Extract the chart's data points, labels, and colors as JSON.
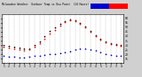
{
  "title": "Milwaukee Weather  Outdoor Temp vs Dew Point  (24 Hours)",
  "title_fontsize": 2.2,
  "background_color": "#d0d0d0",
  "plot_bg_color": "#ffffff",
  "legend_temp_color": "#ff0000",
  "legend_dew_color": "#0000cc",
  "hours": [
    1,
    2,
    3,
    4,
    5,
    6,
    7,
    8,
    9,
    10,
    11,
    12,
    13,
    14,
    15,
    16,
    17,
    18,
    19,
    20,
    21,
    22,
    23,
    24
  ],
  "temp_y": [
    28,
    27,
    26,
    25,
    24,
    25,
    28,
    32,
    37,
    43,
    47,
    52,
    56,
    58,
    57,
    54,
    50,
    45,
    40,
    36,
    33,
    31,
    30,
    29
  ],
  "dew_y": [
    18,
    17,
    17,
    16,
    16,
    17,
    18,
    18,
    19,
    20,
    20,
    21,
    22,
    23,
    25,
    26,
    26,
    25,
    24,
    22,
    20,
    19,
    18,
    18
  ],
  "black_x": [
    1,
    2,
    3,
    4,
    5,
    6,
    7,
    8,
    9,
    10,
    11,
    12,
    13,
    14,
    15,
    16,
    17,
    18,
    19,
    20,
    21,
    22,
    23,
    24
  ],
  "black_y": [
    30,
    29,
    28,
    27,
    26,
    26,
    30,
    34,
    40,
    46,
    50,
    54,
    57,
    59,
    58,
    55,
    51,
    46,
    41,
    37,
    34,
    32,
    31,
    30
  ],
  "ylim": [
    10,
    65
  ],
  "xlim": [
    0.5,
    24.5
  ],
  "tick_fontsize": 2.2,
  "dot_size": 1.5,
  "temp_color": "#ff0000",
  "dew_color": "#0000cc",
  "black_color": "#000000",
  "grid_color": "#aaaaaa",
  "yticks": [
    15,
    20,
    25,
    30,
    35,
    40,
    45,
    50,
    55,
    60
  ],
  "xtick_hours": [
    1,
    2,
    3,
    4,
    5,
    1,
    2,
    3,
    4,
    5,
    1,
    2,
    3,
    4,
    5,
    1,
    2,
    3,
    4,
    5,
    1,
    2,
    3,
    4
  ]
}
